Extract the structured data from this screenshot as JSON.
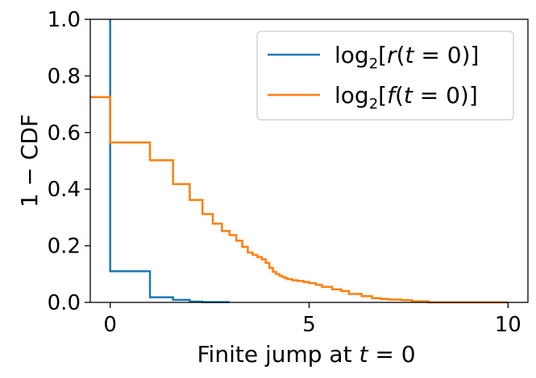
{
  "chart_data": {
    "type": "line",
    "step": true,
    "xlabel_prefix": "Finite jump at ",
    "xlabel_var": "t",
    "xlabel_suffix": " = 0",
    "ylabel": "1 − CDF",
    "xlim": [
      -0.5,
      10.5
    ],
    "ylim": [
      0.0,
      1.0
    ],
    "xticks": [
      0,
      5,
      10
    ],
    "yticks": [
      0.0,
      0.2,
      0.4,
      0.6,
      0.8,
      1.0
    ],
    "xtick_labels": [
      "0",
      "5",
      "10"
    ],
    "ytick_labels": [
      "0.0",
      "0.2",
      "0.4",
      "0.6",
      "0.8",
      "1.0"
    ],
    "grid": false,
    "legend_position": "top-right",
    "series": [
      {
        "name": "log2[r(t = 0)]",
        "legend_base": "log",
        "legend_sub": "2",
        "legend_open": "[",
        "legend_fn": "r",
        "legend_paren_open": "(",
        "legend_var": "t",
        "legend_tail": " = 0)]",
        "color": "#1f77b4",
        "x": [
          0,
          0,
          1.0,
          1.0,
          1.58,
          1.58,
          2.0,
          2.0,
          2.32,
          2.32,
          3.0
        ],
        "y": [
          1.0,
          0.11,
          0.11,
          0.018,
          0.018,
          0.009,
          0.009,
          0.003,
          0.003,
          0.001,
          0.001
        ]
      },
      {
        "name": "log2[f(t = 0)]",
        "legend_base": "log",
        "legend_sub": "2",
        "legend_open": "[",
        "legend_fn": "f",
        "legend_paren_open": "(",
        "legend_var": "t",
        "legend_tail": " = 0)]",
        "color": "#ff7f0e",
        "x": [
          -0.5,
          0,
          0,
          1.0,
          1.0,
          1.58,
          1.58,
          2.0,
          2.0,
          2.32,
          2.32,
          2.58,
          2.58,
          2.81,
          2.81,
          3.0,
          3.0,
          3.17,
          3.17,
          3.32,
          3.32,
          3.46,
          3.46,
          3.58,
          3.58,
          3.7,
          3.7,
          3.81,
          3.81,
          3.91,
          3.91,
          4.0,
          4.0,
          4.09,
          4.09,
          4.17,
          4.17,
          4.25,
          4.25,
          4.32,
          4.32,
          4.39,
          4.39,
          4.46,
          4.46,
          4.58,
          4.58,
          4.7,
          4.7,
          4.86,
          4.86,
          5.0,
          5.0,
          5.17,
          5.17,
          5.32,
          5.32,
          5.58,
          5.58,
          5.81,
          5.81,
          6.0,
          6.0,
          6.32,
          6.32,
          6.58,
          6.58,
          6.81,
          6.81,
          7.0,
          7.0,
          7.32,
          7.32,
          7.58,
          7.58,
          8.0,
          8.0,
          10.0
        ],
        "y": [
          0.725,
          0.725,
          0.565,
          0.565,
          0.502,
          0.502,
          0.418,
          0.418,
          0.362,
          0.362,
          0.312,
          0.312,
          0.278,
          0.278,
          0.252,
          0.252,
          0.238,
          0.238,
          0.218,
          0.218,
          0.196,
          0.196,
          0.176,
          0.176,
          0.168,
          0.168,
          0.16,
          0.16,
          0.152,
          0.152,
          0.14,
          0.14,
          0.122,
          0.122,
          0.108,
          0.108,
          0.1,
          0.1,
          0.094,
          0.094,
          0.09,
          0.09,
          0.086,
          0.086,
          0.082,
          0.082,
          0.078,
          0.078,
          0.076,
          0.076,
          0.072,
          0.072,
          0.068,
          0.068,
          0.062,
          0.062,
          0.055,
          0.055,
          0.046,
          0.046,
          0.04,
          0.04,
          0.03,
          0.03,
          0.022,
          0.022,
          0.015,
          0.015,
          0.012,
          0.012,
          0.01,
          0.01,
          0.008,
          0.008,
          0.004,
          0.004,
          0.0,
          0.0
        ]
      }
    ]
  }
}
